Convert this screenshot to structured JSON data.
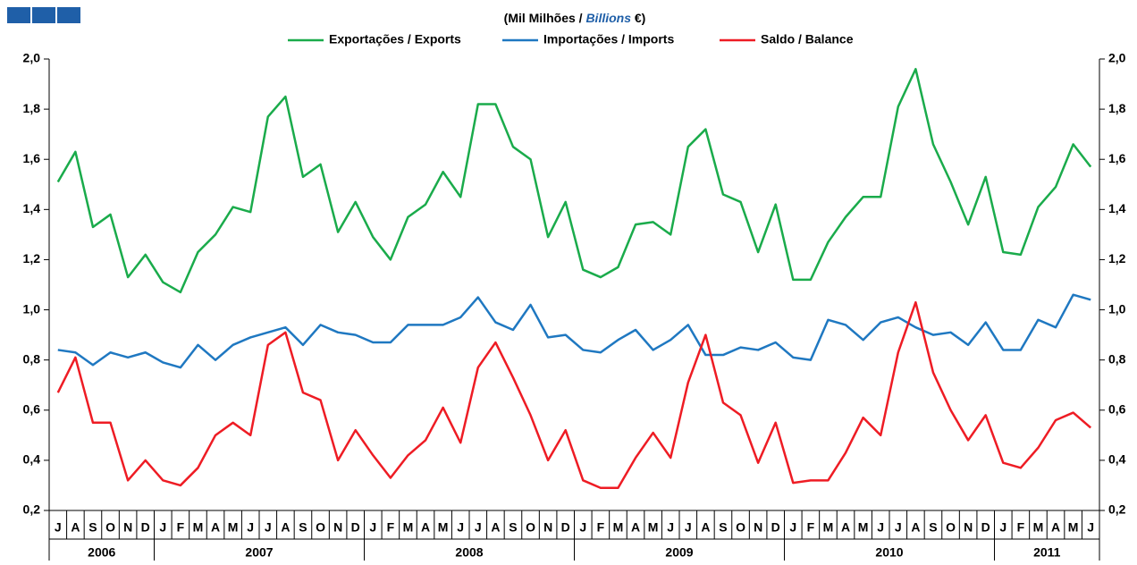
{
  "chart_data": {
    "type": "line",
    "subtitle_parts": [
      "(Mil Milhões / ",
      "Billions",
      " €)"
    ],
    "groups": [
      {
        "label": "2006",
        "categories": [
          "J",
          "A",
          "S",
          "O",
          "N",
          "D"
        ]
      },
      {
        "label": "2007",
        "categories": [
          "J",
          "F",
          "M",
          "A",
          "M",
          "J",
          "J",
          "A",
          "S",
          "O",
          "N",
          "D"
        ]
      },
      {
        "label": "2008",
        "categories": [
          "J",
          "F",
          "M",
          "A",
          "M",
          "J",
          "J",
          "A",
          "S",
          "O",
          "N",
          "D"
        ]
      },
      {
        "label": "2009",
        "categories": [
          "J",
          "F",
          "M",
          "A",
          "M",
          "J",
          "J",
          "A",
          "S",
          "O",
          "N",
          "D"
        ]
      },
      {
        "label": "2010",
        "categories": [
          "J",
          "F",
          "M",
          "A",
          "M",
          "J",
          "J",
          "A",
          "S",
          "O",
          "N",
          "D"
        ]
      },
      {
        "label": "2011",
        "categories": [
          "J",
          "F",
          "M",
          "A",
          "M",
          "J"
        ]
      }
    ],
    "series": [
      {
        "name": "Exportações / Exports",
        "color": "#1aab4b",
        "values": [
          1.51,
          1.63,
          1.33,
          1.38,
          1.13,
          1.22,
          1.11,
          1.07,
          1.23,
          1.3,
          1.41,
          1.39,
          1.77,
          1.85,
          1.53,
          1.58,
          1.31,
          1.43,
          1.29,
          1.2,
          1.37,
          1.42,
          1.55,
          1.45,
          1.82,
          1.82,
          1.65,
          1.6,
          1.29,
          1.43,
          1.16,
          1.13,
          1.17,
          1.34,
          1.35,
          1.3,
          1.65,
          1.72,
          1.46,
          1.43,
          1.23,
          1.42,
          1.12,
          1.12,
          1.27,
          1.37,
          1.45,
          1.45,
          1.81,
          1.96,
          1.66,
          1.51,
          1.34,
          1.53,
          1.23,
          1.22,
          1.41,
          1.49,
          1.66,
          1.57
        ]
      },
      {
        "name": "Importações / Imports",
        "color": "#1f78c1",
        "values": [
          0.84,
          0.83,
          0.78,
          0.83,
          0.81,
          0.83,
          0.79,
          0.77,
          0.86,
          0.8,
          0.86,
          0.89,
          0.91,
          0.93,
          0.86,
          0.94,
          0.91,
          0.9,
          0.87,
          0.87,
          0.94,
          0.94,
          0.94,
          0.97,
          1.05,
          0.95,
          0.92,
          1.02,
          0.89,
          0.9,
          0.84,
          0.83,
          0.88,
          0.92,
          0.84,
          0.88,
          0.94,
          0.82,
          0.82,
          0.85,
          0.84,
          0.87,
          0.81,
          0.8,
          0.96,
          0.94,
          0.88,
          0.95,
          0.97,
          0.93,
          0.9,
          0.91,
          0.86,
          0.95,
          0.84,
          0.84,
          0.96,
          0.93,
          1.06,
          1.04
        ]
      },
      {
        "name": "Saldo / Balance",
        "color": "#ee1c24",
        "values": [
          0.67,
          0.81,
          0.55,
          0.55,
          0.32,
          0.4,
          0.32,
          0.3,
          0.37,
          0.5,
          0.55,
          0.5,
          0.86,
          0.91,
          0.67,
          0.64,
          0.4,
          0.52,
          0.42,
          0.33,
          0.42,
          0.48,
          0.61,
          0.47,
          0.77,
          0.87,
          0.73,
          0.58,
          0.4,
          0.52,
          0.32,
          0.29,
          0.29,
          0.41,
          0.51,
          0.41,
          0.71,
          0.9,
          0.63,
          0.58,
          0.39,
          0.55,
          0.31,
          0.32,
          0.32,
          0.43,
          0.57,
          0.5,
          0.83,
          1.03,
          0.75,
          0.6,
          0.48,
          0.58,
          0.39,
          0.37,
          0.45,
          0.56,
          0.59,
          0.53
        ]
      }
    ],
    "ylim": [
      0.2,
      2.0
    ],
    "yticks": [
      {
        "value": 0.2,
        "label": "0,2"
      },
      {
        "value": 0.4,
        "label": "0,4"
      },
      {
        "value": 0.6,
        "label": "0,6"
      },
      {
        "value": 0.8,
        "label": "0,8"
      },
      {
        "value": 1.0,
        "label": "1,0"
      },
      {
        "value": 1.2,
        "label": "1,2"
      },
      {
        "value": 1.4,
        "label": "1,4"
      },
      {
        "value": 1.6,
        "label": "1,6"
      },
      {
        "value": 1.8,
        "label": "1,8"
      },
      {
        "value": 2.0,
        "label": "2,0"
      }
    ]
  }
}
